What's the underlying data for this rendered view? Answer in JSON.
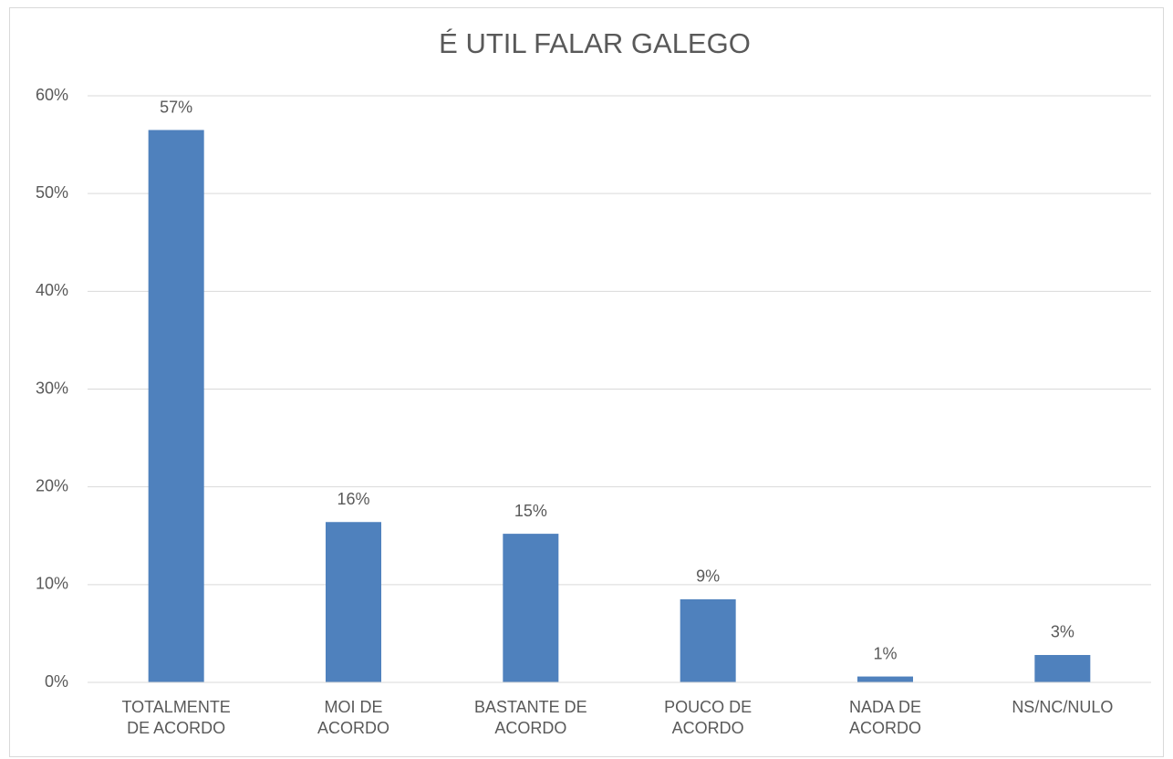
{
  "chart_data": {
    "type": "bar",
    "title": "É UTIL FALAR GALEGO",
    "categories": [
      "TOTALMENTE\nDE ACORDO",
      "MOI DE\nACORDO",
      "BASTANTE DE\nACORDO",
      "POUCO DE\nACORDO",
      "NADA DE\nACORDO",
      "NS/NC/NULO"
    ],
    "values": [
      56.5,
      16.4,
      15.2,
      8.5,
      0.6,
      2.8
    ],
    "value_labels": [
      "57%",
      "16%",
      "15%",
      "9%",
      "1%",
      "3%"
    ],
    "color": "#4f81bd",
    "ylim": [
      0,
      60
    ],
    "yticks": [
      {
        "value": 0,
        "label": "0%"
      },
      {
        "value": 10,
        "label": "10%"
      },
      {
        "value": 20,
        "label": "20%"
      },
      {
        "value": 30,
        "label": "30%"
      },
      {
        "value": 40,
        "label": "40%"
      },
      {
        "value": 50,
        "label": "50%"
      },
      {
        "value": 60,
        "label": "60%"
      }
    ],
    "grid": true
  }
}
